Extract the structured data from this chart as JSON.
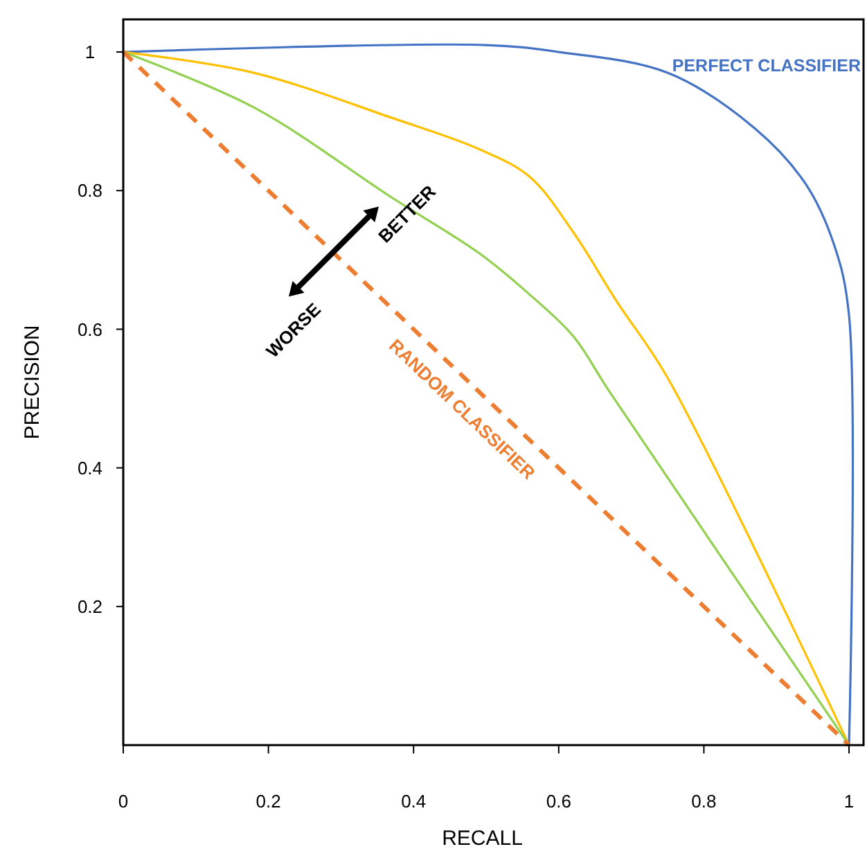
{
  "chart_data": {
    "type": "line",
    "xlabel": "RECALL",
    "ylabel": "PRECISION",
    "xlim": [
      0,
      1.02
    ],
    "ylim": [
      0,
      1.047
    ],
    "xticks": [
      0,
      0.2,
      0.4,
      0.6,
      0.8,
      1
    ],
    "yticks": [
      0.2,
      0.4,
      0.6,
      0.8,
      1
    ],
    "grid": false,
    "marker": "none",
    "annotations": [
      "BETTER",
      "WORSE"
    ],
    "series": [
      {
        "name": "PERFECT CLASSIFIER",
        "color": "#4472c4",
        "x": [
          0,
          0.5,
          0.6,
          0.75,
          0.87,
          0.94,
          0.98,
          1,
          1
        ],
        "values": [
          1,
          1.01,
          1.0,
          0.97,
          0.89,
          0.81,
          0.72,
          0.62,
          0
        ]
      },
      {
        "color": "#ffc000",
        "x": [
          0,
          0.18,
          0.37,
          0.49,
          0.56,
          0.62,
          0.68,
          0.75,
          1
        ],
        "values": [
          1,
          0.97,
          0.905,
          0.86,
          0.82,
          0.74,
          0.64,
          0.53,
          0
        ]
      },
      {
        "color": "#92d050",
        "x": [
          0,
          0.18,
          0.37,
          0.49,
          0.56,
          0.62,
          0.67,
          1
        ],
        "values": [
          1,
          0.92,
          0.79,
          0.71,
          0.65,
          0.59,
          0.51,
          0
        ]
      },
      {
        "name": "RANDOM CLASSIFIER",
        "color": "#ed7d31",
        "line_style": "dashed",
        "x": [
          0,
          1
        ],
        "values": [
          1,
          0
        ]
      }
    ]
  }
}
